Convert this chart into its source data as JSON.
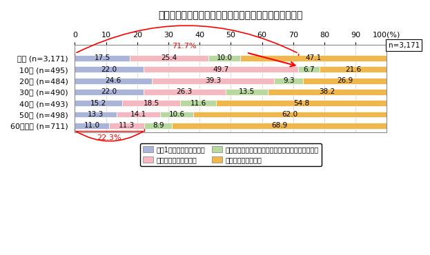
{
  "title": "若年層ほど現在の利用率が高く、複数利用の割合も高い",
  "n_label": "n=3,171",
  "categories": [
    "全体 (n=3,171)",
    "10代 (n=495)",
    "20代 (n=484)",
    "30代 (n=490)",
    "40代 (n=493)",
    "50代 (n=498)",
    "60代以上 (n=711)"
  ],
  "segments": {
    "s1": [
      17.5,
      22.0,
      24.6,
      22.0,
      15.2,
      13.3,
      11.0
    ],
    "s2": [
      25.4,
      49.7,
      39.3,
      26.3,
      18.5,
      14.1,
      11.3
    ],
    "s3": [
      10.0,
      6.7,
      9.3,
      13.5,
      11.6,
      10.6,
      8.9
    ],
    "s4": [
      47.1,
      21.6,
      26.9,
      38.2,
      54.8,
      62.0,
      68.9
    ]
  },
  "legend_labels": [
    "現在1つだけ利用している",
    "現在複数利用している",
    "過去に利用したことがあるが現在は利用していない",
    "利用したことがない"
  ],
  "colors": [
    "#aab4d8",
    "#f4b8c1",
    "#b8d8a0",
    "#f0b84c"
  ],
  "xlim": [
    0,
    100
  ],
  "xticks": [
    0,
    10,
    20,
    30,
    40,
    50,
    60,
    70,
    80,
    90,
    100
  ],
  "background_color": "#ffffff",
  "bar_height": 0.55,
  "title_fontsize": 10,
  "tick_fontsize": 8,
  "label_fontsize": 8,
  "bar_label_fontsize": 7.5
}
